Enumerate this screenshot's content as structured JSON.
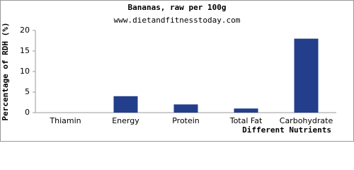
{
  "chart_data": {
    "type": "bar",
    "title": "Bananas, raw per 100g",
    "subtitle": "www.dietandfitnesstoday.com",
    "x_label": "Different Nutrients",
    "y_label": "Percentage of RDH (%)",
    "categories": [
      "Thiamin",
      "Energy",
      "Protein",
      "Total Fat",
      "Carbohydrate"
    ],
    "values": [
      0,
      4,
      2,
      1,
      18
    ],
    "color": "#233e8b",
    "ylim": [
      0,
      20
    ],
    "yticks": [
      0,
      5,
      10,
      15,
      20
    ],
    "grid": false
  }
}
